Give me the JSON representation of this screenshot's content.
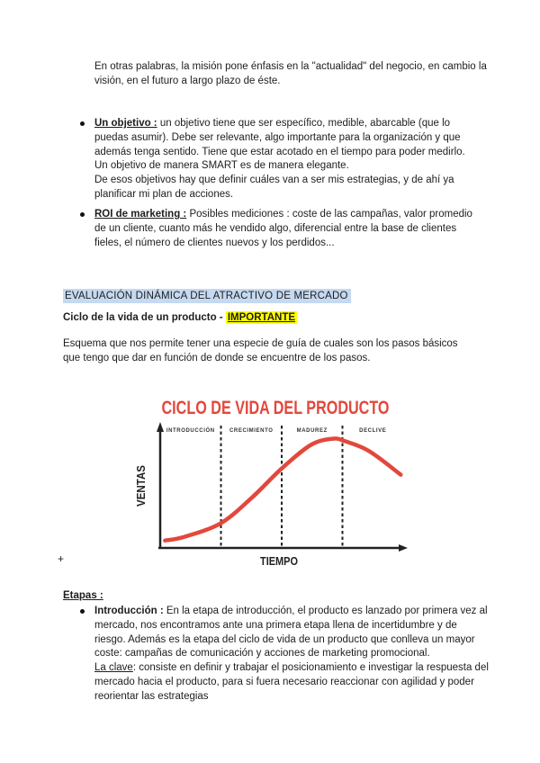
{
  "page": {
    "paragraph_mision": "En otras palabras, la misión pone énfasis en la \"actualidad\" del negocio, en cambio la visión, en el futuro a largo plazo de éste.",
    "bullets": [
      {
        "lead": "Un objetivo :",
        "text": " un objetivo tiene que ser específico, medible, abarcable (que lo puedas asumir). Debe ser relevante, algo importante para la organización y que además tenga sentido. Tiene que estar acotado en el tiempo para poder medirlo.\nUn objetivo de manera SMART es de manera elegante.\nDe esos objetivos hay que definir cuáles van a ser mis estrategias, y de ahí ya planificar mi plan de acciones."
      },
      {
        "lead": "ROI de marketing :",
        "text": " Posibles mediciones : coste de las campañas, valor promedio de un cliente, cuanto más he vendido algo, diferencial entre la base de clientes fieles, el número de clientes nuevos y los perdidos..."
      }
    ],
    "section_heading": "EVALUACIÓN DINÁMICA DEL ATRACTIVO DE MERCADO",
    "subheading_text": "Ciclo de la vida de un producto",
    "subheading_separator": " - ",
    "subheading_highlight": "IMPORTANTE",
    "paragraph_esquema": "Esquema que nos permite tener una especie de guía de cuales son los pasos básicos que tengo que dar en función de donde se encuentre de los pasos.",
    "plus_marker": "+",
    "etapas_heading": "Etapas :",
    "etapas_bullet": {
      "lead": "Introducción :",
      "text_before": " En la etapa de introducción, el producto es lanzado por primera vez al mercado, nos encontramos ante una primera etapa llena de incertidumbre y de riesgo. Además es la etapa del ciclo de vida de un producto que conlleva un mayor coste: campañas de comunicación y acciones de marketing promocional.\n",
      "underlined": "La clave",
      "text_after": ": consiste en definir y trabajar el posicionamiento e investigar la respuesta del mercado hacia el producto, para si fuera necesario reaccionar con agilidad y poder reorientar las estrategias"
    }
  },
  "colors": {
    "section_highlight": "#c5d9f1",
    "important_highlight": "#ffff00",
    "text": "#1d1d1d",
    "chart_red": "#e2483c",
    "axis_black": "#222222"
  },
  "chart_data": {
    "type": "line",
    "title": "CICLO DE VIDA DEL PRODUCTO",
    "xlabel": "TIEMPO",
    "ylabel": "VENTAS",
    "phases": [
      "INTRODUCCIÓN",
      "CRECIMIENTO",
      "MADUREZ",
      "DECLIVE"
    ],
    "phase_boundaries_x": [
      0.25,
      0.5,
      0.75
    ],
    "axis_range": {
      "x": [
        0,
        1
      ],
      "y": [
        0,
        1
      ]
    },
    "grid": false,
    "legend": "none",
    "title_color": "#e2483c",
    "curve_color": "#e2483c",
    "series": [
      {
        "name": "Ventas",
        "x": [
          0.02,
          0.1,
          0.25,
          0.38,
          0.5,
          0.62,
          0.71,
          0.76,
          0.86,
          0.99
        ],
        "y": [
          0.06,
          0.09,
          0.2,
          0.41,
          0.64,
          0.83,
          0.88,
          0.86,
          0.78,
          0.59
        ]
      }
    ]
  }
}
